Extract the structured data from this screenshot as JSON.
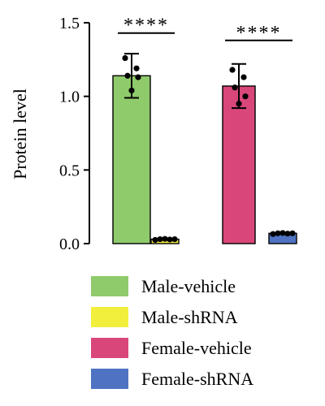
{
  "chart_data": {
    "type": "bar",
    "ylabel": "Protein level",
    "ylim": [
      0,
      1.5
    ],
    "yticks": [
      "0.0",
      "0.5",
      "1.0",
      "1.5"
    ],
    "grid": false,
    "legend_position": "bottom",
    "series": [
      {
        "name": "Male-vehicle",
        "color": "#8FCB6B",
        "mean": 1.14,
        "error": 0.15,
        "points": [
          1.26,
          1.19,
          1.14,
          1.13,
          1.04
        ]
      },
      {
        "name": "Male-shRNA",
        "color": "#F2EE3C",
        "mean": 0.03,
        "error": 0.008,
        "points": [
          0.025,
          0.03,
          0.032,
          0.028,
          0.03
        ]
      },
      {
        "name": "Female-vehicle",
        "color": "#D9467A",
        "mean": 1.07,
        "error": 0.15,
        "points": [
          1.18,
          1.13,
          1.06,
          1.0,
          0.95
        ]
      },
      {
        "name": "Female-shRNA",
        "color": "#4F73C2",
        "mean": 0.07,
        "error": 0.01,
        "points": [
          0.065,
          0.07,
          0.072,
          0.068,
          0.07
        ]
      }
    ],
    "annotations": [
      {
        "text": "****",
        "between": [
          "Male-vehicle",
          "Male-shRNA"
        ],
        "y": 1.43
      },
      {
        "text": "****",
        "between": [
          "Female-vehicle",
          "Female-shRNA"
        ],
        "y": 1.38
      }
    ]
  }
}
